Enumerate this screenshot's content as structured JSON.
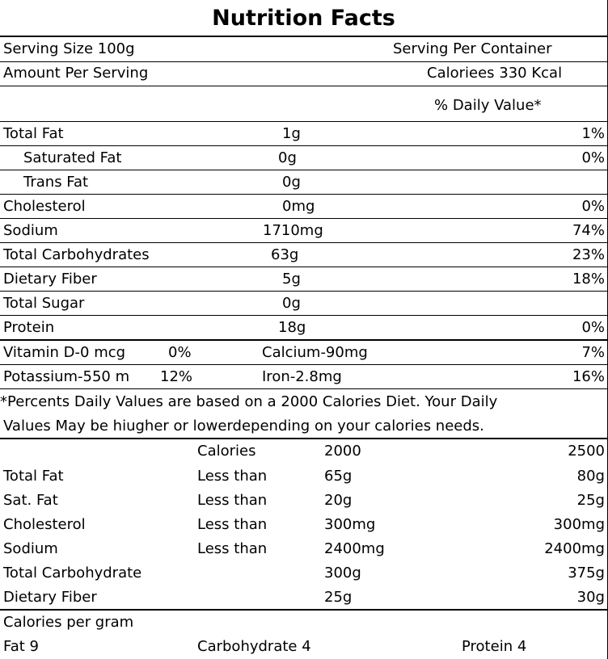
{
  "title": "Nutrition Facts",
  "serving": {
    "size": "Serving Size 100g",
    "per_container": "Serving Per  Container",
    "amount": "Amount Per Serving",
    "calories": "Caloriees 330 Kcal",
    "daily_value_header": "% Daily Value*"
  },
  "nutrients": [
    {
      "name": "Total Fat",
      "amount": "1g",
      "dv": "1%"
    },
    {
      "name": "Saturated Fat",
      "amount": "0g",
      "dv": "0%"
    },
    {
      "name": "Trans Fat",
      "amount": "0g",
      "dv": ""
    },
    {
      "name": "Cholesterol",
      "amount": "0mg",
      "dv": "0%"
    },
    {
      "name": "Sodium",
      "amount": "1710mg",
      "dv": "74%"
    },
    {
      "name": "Total Carbohydrates",
      "amount": "63g",
      "dv": "23%"
    },
    {
      "name": "Dietary Fiber",
      "amount": "5g",
      "dv": "18%"
    },
    {
      "name": "Total Sugar",
      "amount": "0g",
      "dv": ""
    },
    {
      "name": "Protein",
      "amount": "18g",
      "dv": "0%"
    }
  ],
  "vitamins": [
    {
      "name1": "Vitamin D-0 mcg",
      "pct1": "0%",
      "name2": "Calcium-90mg",
      "pct2": "7%"
    },
    {
      "name1": "Potassium-550 m",
      "pct1": "12%",
      "name2": "Iron-2.8mg",
      "pct2": "16%"
    }
  ],
  "footnote": {
    "line1": "*Percents   Daily  Values  are based on a 2000 Calories Diet. Your Daily",
    "line2": "Values May be hiugher or lowerdepending on your calories needs."
  },
  "reference_table": {
    "header": {
      "label": "",
      "limit": "Calories",
      "v1": "2000",
      "v2": "2500"
    },
    "rows": [
      {
        "label": "Total Fat",
        "limit": "Less than",
        "v1": "65g",
        "v2": "80g"
      },
      {
        "label": "Sat. Fat",
        "limit": "Less than",
        "v1": "20g",
        "v2": "25g"
      },
      {
        "label": "Cholesterol",
        "limit": "Less than",
        "v1": "300mg",
        "v2": "300mg"
      },
      {
        "label": "Sodium",
        "limit": "Less than",
        "v1": "2400mg",
        "v2": "2400mg"
      },
      {
        "label": "Total Carbohydrate",
        "limit": "",
        "v1": "300g",
        "v2": "375g"
      },
      {
        "label": "Dietary Fiber",
        "limit": "",
        "v1": "25g",
        "v2": "30g"
      }
    ]
  },
  "calories_per_gram": {
    "label": "Calories per gram",
    "fat": "Fat 9",
    "carbohydrate": "Carbohydrate 4",
    "protein": "Protein 4"
  }
}
